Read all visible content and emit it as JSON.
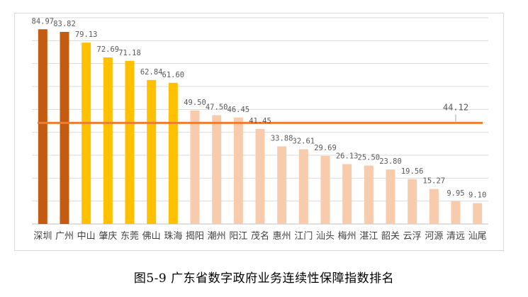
{
  "caption": "图5-9  广东省数字政府业务连续性保障指数排名",
  "chart_data": {
    "type": "bar",
    "categories": [
      "深圳",
      "广州",
      "中山",
      "肇庆",
      "东莞",
      "佛山",
      "珠海",
      "揭阳",
      "潮州",
      "阳江",
      "茂名",
      "惠州",
      "江门",
      "汕头",
      "梅州",
      "湛江",
      "韶关",
      "云浮",
      "河源",
      "清远",
      "汕尾"
    ],
    "values": [
      84.97,
      83.82,
      79.13,
      72.69,
      71.18,
      62.84,
      61.6,
      49.5,
      47.5,
      46.45,
      41.45,
      33.88,
      32.61,
      29.69,
      26.13,
      25.5,
      23.8,
      19.56,
      15.27,
      9.95,
      9.1
    ],
    "value_labels": [
      "84.97",
      "83.82",
      "79.13",
      "72.69",
      "71.18",
      "62.84",
      "61.60",
      "49.50",
      "47.50",
      "46.45",
      "41.45",
      "33.88",
      "32.61",
      "29.69",
      "26.13",
      "25.50",
      "23.80",
      "19.56",
      "15.27",
      "9.95",
      "9.10"
    ],
    "tiers": [
      "top",
      "top",
      "high",
      "high",
      "high",
      "high",
      "high",
      "low",
      "low",
      "low",
      "low",
      "low",
      "low",
      "low",
      "low",
      "low",
      "low",
      "low",
      "low",
      "low",
      "low"
    ],
    "colors": {
      "top": "#C55A11",
      "high": "#FFC000",
      "low": "#F8CBAD",
      "average_line": "#ED7D31",
      "grid": "#d9d9d9",
      "label": "#595959"
    },
    "average": {
      "value": 44.12,
      "label": "44.12"
    },
    "ylim": [
      0,
      90
    ],
    "grid": true
  }
}
